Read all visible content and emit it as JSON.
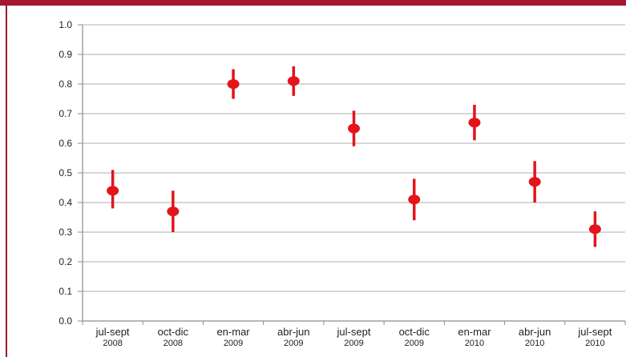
{
  "colors": {
    "accent": "#a3182e",
    "marker": "#e3141b",
    "grid": "#bfbfbf",
    "axis": "#8c8c8c"
  },
  "chart_data": {
    "type": "scatter",
    "title": "",
    "xlabel": "",
    "ylabel": "",
    "ylim": [
      0,
      1.0
    ],
    "yticks": [
      0.0,
      0.1,
      0.2,
      0.3,
      0.4,
      0.5,
      0.6,
      0.7,
      0.8,
      0.9,
      1.0
    ],
    "ytick_labels": [
      "0.0",
      "0.1",
      "0.2",
      "0.3",
      "0.4",
      "0.5",
      "0.6",
      "0.7",
      "0.8",
      "0.9",
      "1.0"
    ],
    "grid": "horizontal",
    "legend": "none",
    "categories": [
      {
        "period": "jul-sept",
        "year": "2008"
      },
      {
        "period": "oct-dic",
        "year": "2008"
      },
      {
        "period": "en-mar",
        "year": "2009"
      },
      {
        "period": "abr-jun",
        "year": "2009"
      },
      {
        "period": "jul-sept",
        "year": "2009"
      },
      {
        "period": "oct-dic",
        "year": "2009"
      },
      {
        "period": "en-mar",
        "year": "2010"
      },
      {
        "period": "abr-jun",
        "year": "2010"
      },
      {
        "period": "jul-sept",
        "year": "2010"
      }
    ],
    "series": [
      {
        "values": [
          0.44,
          0.37,
          0.8,
          0.81,
          0.65,
          0.41,
          0.67,
          0.47,
          0.31
        ],
        "lower": [
          0.38,
          0.3,
          0.75,
          0.76,
          0.59,
          0.34,
          0.61,
          0.4,
          0.25
        ],
        "upper": [
          0.51,
          0.44,
          0.85,
          0.86,
          0.71,
          0.48,
          0.73,
          0.54,
          0.37
        ]
      }
    ]
  }
}
